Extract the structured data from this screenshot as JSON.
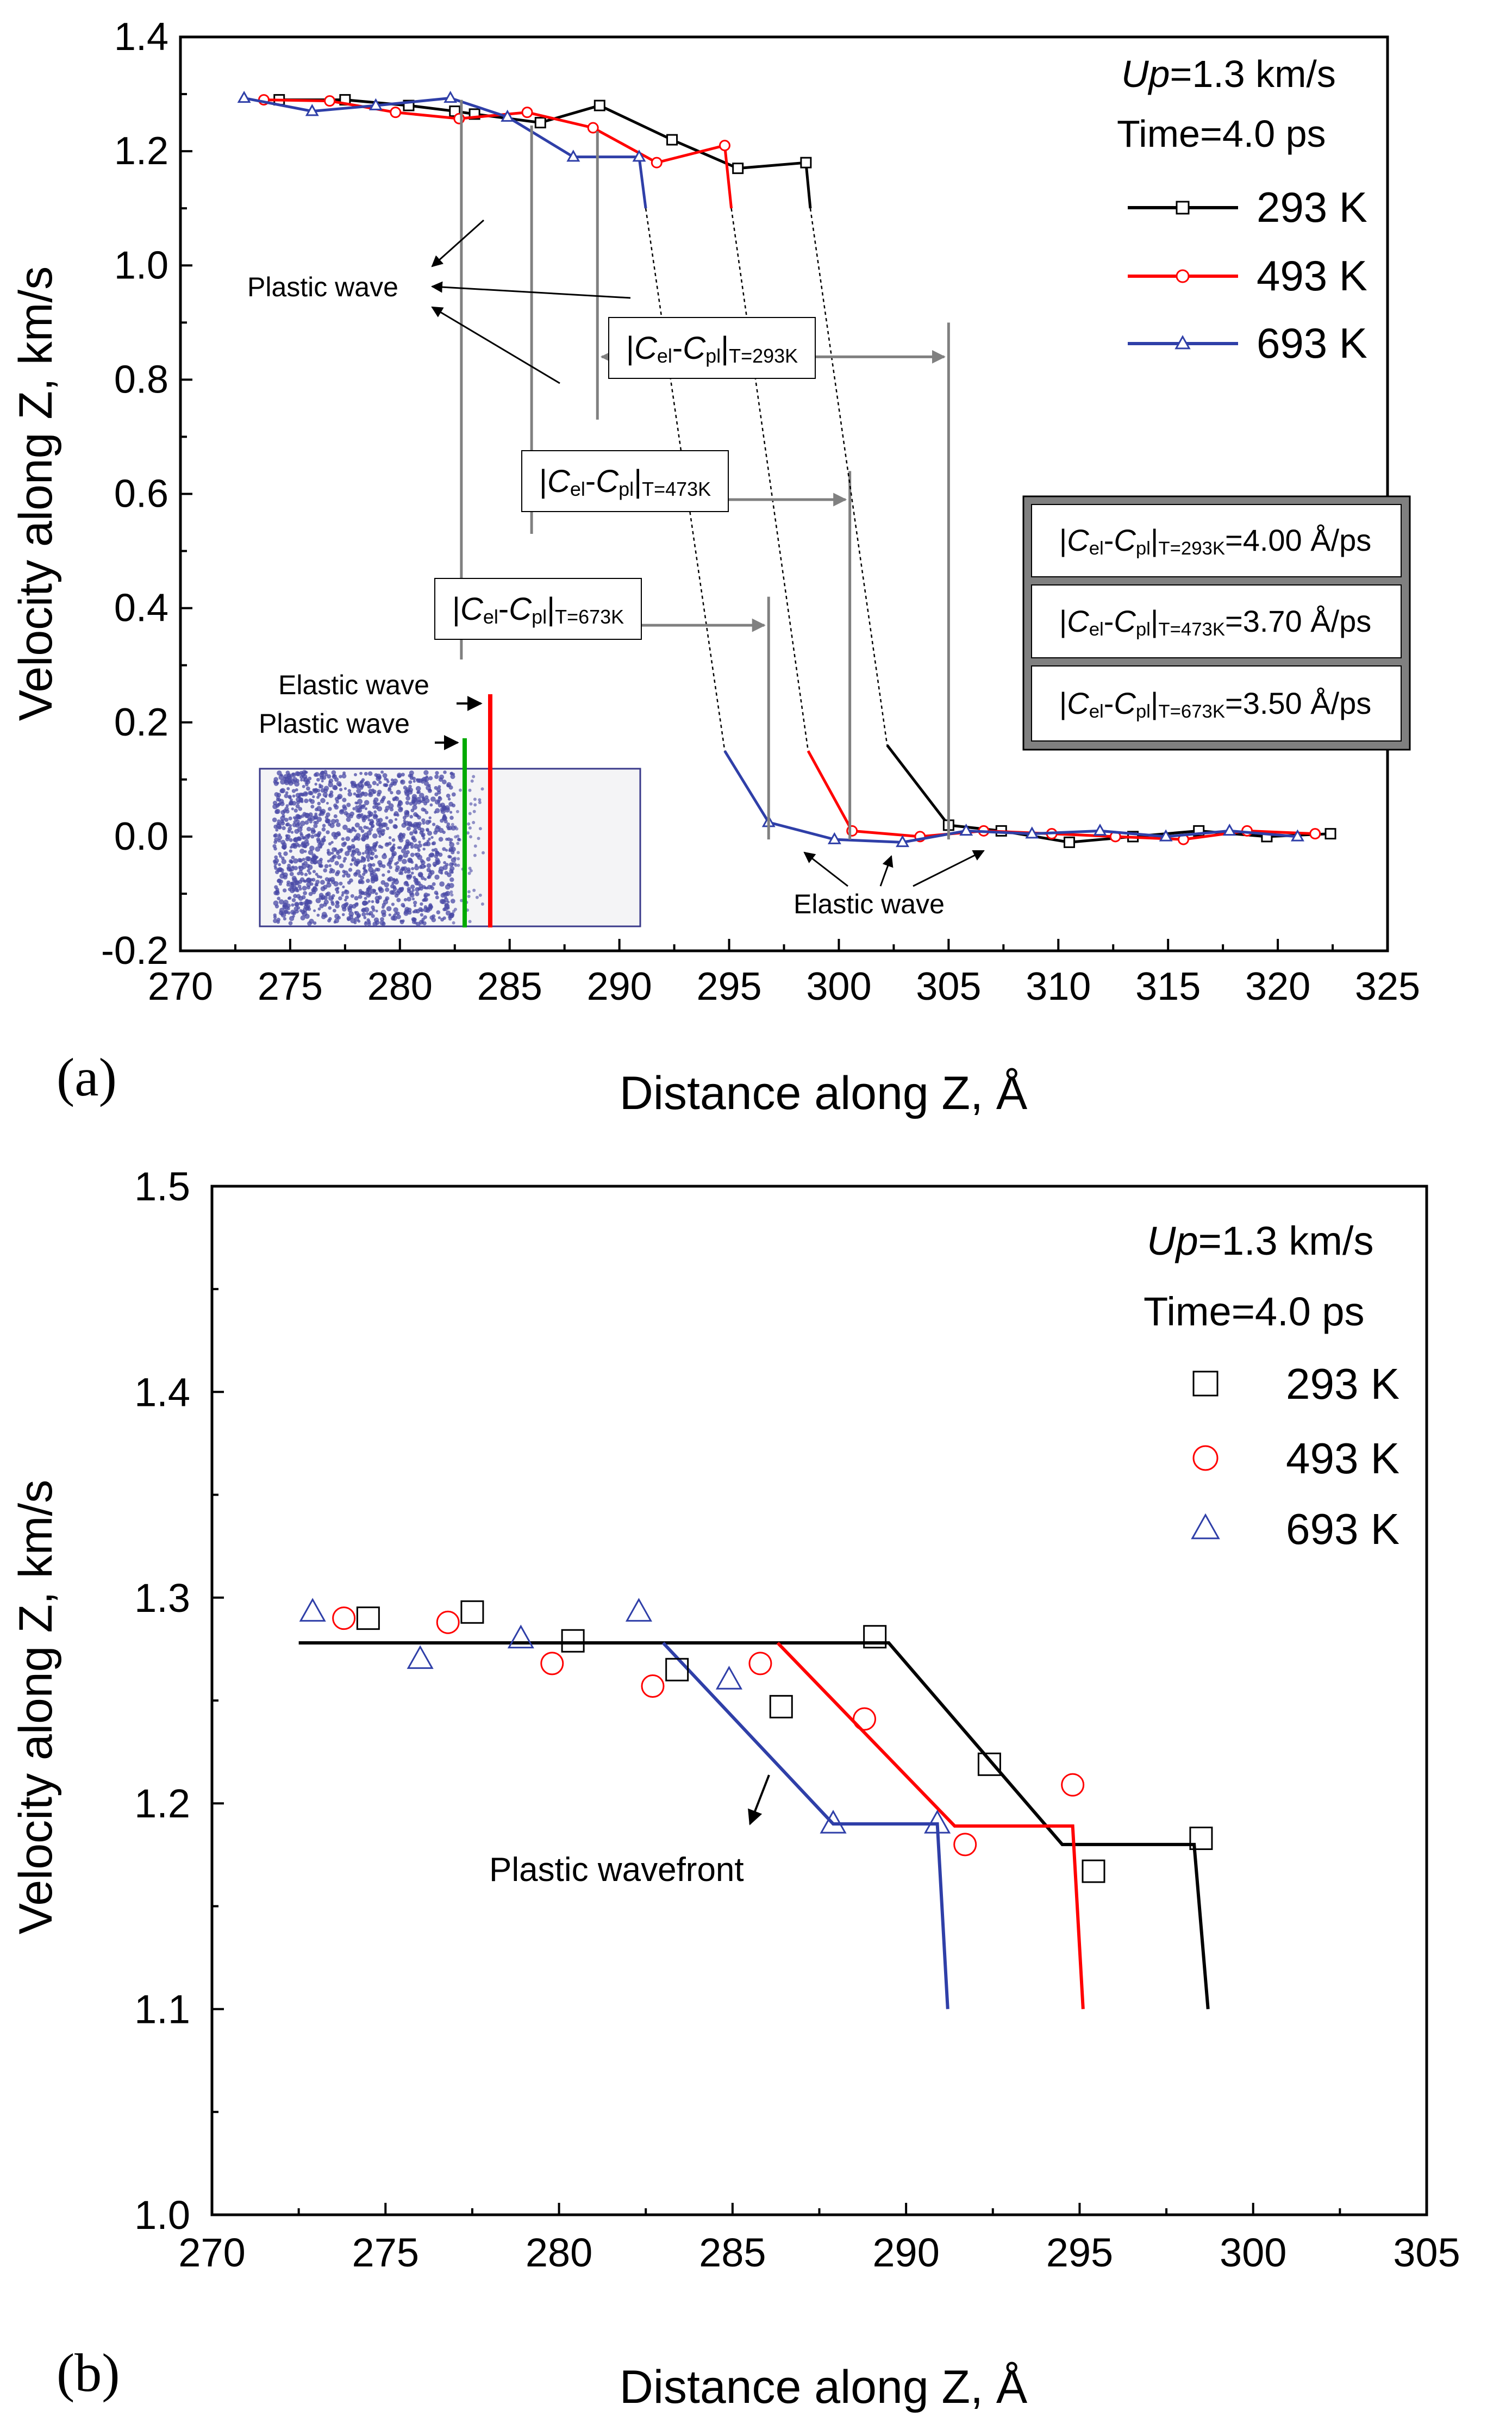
{
  "colors": {
    "s293": "#000000",
    "s493": "#ff0000",
    "s693": "#2f3fa8",
    "plastic_green": "#00aa00",
    "annotation_gray": "#808080",
    "box_gray": "#808080",
    "atoms": "#4a4aa6"
  },
  "chart_data": [
    {
      "type": "line",
      "panel_label": "(a)",
      "xlabel": "Distance along Z, Å",
      "ylabel": "Velocity along Z, km/s",
      "xlim": [
        270,
        325
      ],
      "ylim": [
        -0.2,
        1.4
      ],
      "xticks": [
        "270",
        "275",
        "280",
        "285",
        "290",
        "295",
        "300",
        "305",
        "310",
        "315",
        "320",
        "325"
      ],
      "yticks": [
        "-0.2",
        "0.0",
        "0.2",
        "0.4",
        "0.6",
        "0.8",
        "1.0",
        "1.2",
        "1.4"
      ],
      "legend": {
        "line1": "Up=1.3 km/s",
        "up_italic": "Up",
        "up_rest": "=1.3 km/s",
        "line2": "Time=4.0 ps",
        "entries": [
          "293 K",
          "493 K",
          "693 K"
        ],
        "placement": "top-right"
      },
      "series": [
        {
          "name": "293 K",
          "marker": "square",
          "points": [
            [
              274.5,
              1.29
            ],
            [
              277.5,
              1.29
            ],
            [
              280.4,
              1.28
            ],
            [
              282.5,
              1.27
            ],
            [
              283.4,
              1.265
            ],
            [
              286.4,
              1.25
            ],
            [
              289.1,
              1.28
            ],
            [
              292.4,
              1.22
            ],
            [
              295.4,
              1.17
            ],
            [
              298.5,
              1.18
            ],
            [
              298.7,
              1.1
            ]
          ],
          "tail": [
            [
              302.2,
              0.16
            ],
            [
              305.0,
              0.02
            ],
            [
              307.4,
              0.01
            ],
            [
              310.5,
              -0.01
            ],
            [
              313.4,
              0.0
            ],
            [
              316.4,
              0.01
            ],
            [
              319.5,
              0.0
            ],
            [
              322.4,
              0.005
            ]
          ]
        },
        {
          "name": "493 K",
          "marker": "circle",
          "points": [
            [
              273.8,
              1.29
            ],
            [
              276.8,
              1.288
            ],
            [
              279.8,
              1.268
            ],
            [
              282.7,
              1.257
            ],
            [
              285.8,
              1.268
            ],
            [
              288.8,
              1.241
            ],
            [
              291.7,
              1.18
            ],
            [
              294.8,
              1.21
            ],
            [
              295.1,
              1.1
            ]
          ],
          "tail": [
            [
              298.6,
              0.15
            ],
            [
              300.6,
              0.01
            ],
            [
              303.7,
              0.0
            ],
            [
              306.6,
              0.01
            ],
            [
              309.7,
              0.005
            ],
            [
              312.6,
              0.0
            ],
            [
              315.7,
              -0.005
            ],
            [
              318.6,
              0.01
            ],
            [
              321.7,
              0.005
            ]
          ]
        },
        {
          "name": "693 K",
          "marker": "triangle",
          "points": [
            [
              272.9,
              1.293
            ],
            [
              276.0,
              1.27
            ],
            [
              278.9,
              1.28
            ],
            [
              282.3,
              1.293
            ],
            [
              284.9,
              1.26
            ],
            [
              287.9,
              1.19
            ],
            [
              290.9,
              1.19
            ],
            [
              291.2,
              1.1
            ]
          ],
          "tail": [
            [
              294.8,
              0.15
            ],
            [
              296.8,
              0.025
            ],
            [
              299.8,
              -0.005
            ],
            [
              302.9,
              -0.01
            ],
            [
              305.8,
              0.01
            ],
            [
              308.8,
              0.005
            ],
            [
              311.9,
              0.01
            ],
            [
              314.9,
              0.0
            ],
            [
              317.8,
              0.01
            ],
            [
              320.9,
              0.0
            ]
          ]
        }
      ],
      "annotations": {
        "plastic_wave": "Plastic wave",
        "elastic_wave": "Elastic wave",
        "inset_elastic": "Elastic wave",
        "inset_plastic": "Plastic wave",
        "bracket_293": {
          "pre": "|",
          "C": "C",
          "el": "el",
          "dash": "-",
          "C2": "C",
          "pl": "pl",
          "post": "|",
          "sub": "T=293K",
          "x_from": 289.0,
          "x_to": 305.0,
          "y": 0.84
        },
        "bracket_473": {
          "pre": "|",
          "C": "C",
          "el": "el",
          "dash": "-",
          "C2": "C",
          "pl": "pl",
          "post": "|",
          "sub": "T=473K",
          "x_from": 286.0,
          "x_to": 300.5,
          "y": 0.59
        },
        "bracket_673": {
          "pre": "|",
          "C": "C",
          "el": "el",
          "dash": "-",
          "C2": "C",
          "pl": "pl",
          "post": "|",
          "sub": "T=673K",
          "x_from": 282.8,
          "x_to": 296.8,
          "y": 0.37
        },
        "values_box": [
          {
            "sub": "T=293K",
            "value": "=4.00 Å/ps"
          },
          {
            "sub": "T=473K",
            "value": "=3.70 Å/ps"
          },
          {
            "sub": "T=673K",
            "value": "=3.50 Å/ps"
          }
        ]
      }
    },
    {
      "type": "scatter",
      "panel_label": "(b)",
      "xlabel": "Distance along Z, Å",
      "ylabel": "Velocity along Z, km/s",
      "xlim": [
        270,
        305
      ],
      "ylim": [
        1.0,
        1.5
      ],
      "xticks": [
        "270",
        "275",
        "280",
        "285",
        "290",
        "295",
        "300",
        "305"
      ],
      "yticks": [
        "1.0",
        "1.1",
        "1.2",
        "1.3",
        "1.4",
        "1.5"
      ],
      "legend": {
        "line1": "Up=1.3 km/s",
        "up_italic": "Up",
        "up_rest": "=1.3 km/s",
        "line2": "Time=4.0 ps",
        "entries": [
          "293 K",
          "493 K",
          "693 K"
        ],
        "placement": "top-right"
      },
      "series": [
        {
          "name": "293 K",
          "marker": "square",
          "points": [
            [
              274.5,
              1.29
            ],
            [
              277.5,
              1.293
            ],
            [
              280.4,
              1.279
            ],
            [
              283.4,
              1.265
            ],
            [
              286.4,
              1.247
            ],
            [
              289.1,
              1.281
            ],
            [
              292.4,
              1.219
            ],
            [
              295.4,
              1.167
            ],
            [
              298.5,
              1.183
            ]
          ],
          "fit": [
            [
              272.5,
              1.278
            ],
            [
              289.5,
              1.278
            ],
            [
              294.5,
              1.18
            ],
            [
              298.3,
              1.18
            ],
            [
              298.7,
              1.1
            ]
          ]
        },
        {
          "name": "493 K",
          "marker": "circle",
          "points": [
            [
              273.8,
              1.29
            ],
            [
              276.8,
              1.288
            ],
            [
              279.8,
              1.268
            ],
            [
              282.7,
              1.257
            ],
            [
              285.8,
              1.268
            ],
            [
              288.8,
              1.241
            ],
            [
              291.7,
              1.18
            ],
            [
              294.8,
              1.209
            ]
          ],
          "fit": [
            [
              286.3,
              1.278
            ],
            [
              291.4,
              1.189
            ],
            [
              294.8,
              1.189
            ],
            [
              295.1,
              1.1
            ]
          ]
        },
        {
          "name": "693 K",
          "marker": "triangle",
          "points": [
            [
              272.9,
              1.293
            ],
            [
              276.0,
              1.27
            ],
            [
              278.9,
              1.28
            ],
            [
              282.3,
              1.293
            ],
            [
              284.9,
              1.26
            ],
            [
              287.9,
              1.19
            ],
            [
              290.9,
              1.19
            ]
          ],
          "fit": [
            [
              283.0,
              1.278
            ],
            [
              287.9,
              1.19
            ],
            [
              290.9,
              1.19
            ],
            [
              291.2,
              1.1
            ]
          ]
        }
      ],
      "annotations": {
        "plastic_wavefront": "Plastic wavefront"
      }
    }
  ]
}
